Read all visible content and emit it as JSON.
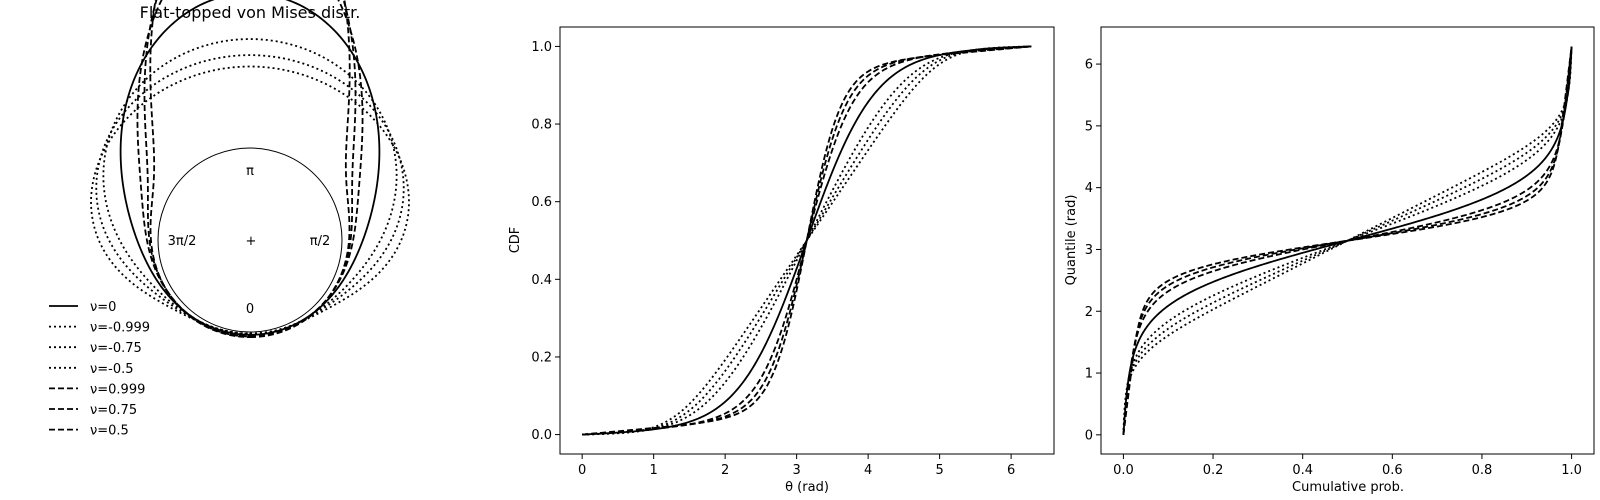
{
  "chart_data": [
    {
      "type": "polar-line",
      "title": "Flat-topped von Mises distr.",
      "angle_labels": {
        "top": "π",
        "right": "π/2",
        "left": "3π/2",
        "bottom": "0",
        "center": "+"
      },
      "legend_placement": "lower-left",
      "series": [
        {
          "name": "ν=0",
          "nu": 0,
          "linestyle": "solid"
        },
        {
          "name": "ν=-0.999",
          "nu": -0.999,
          "linestyle": "dotted"
        },
        {
          "name": "ν=-0.75",
          "nu": -0.75,
          "linestyle": "dotted"
        },
        {
          "name": "ν=-0.5",
          "nu": -0.5,
          "linestyle": "dotted"
        },
        {
          "name": "ν=0.999",
          "nu": 0.999,
          "linestyle": "dashed"
        },
        {
          "name": "ν=0.75",
          "nu": 0.75,
          "linestyle": "dashed"
        },
        {
          "name": "ν=0.5",
          "nu": 0.5,
          "linestyle": "dashed"
        }
      ]
    },
    {
      "type": "line",
      "xlabel": "θ (rad)",
      "ylabel": "CDF",
      "xlim": [
        -0.31,
        6.6
      ],
      "ylim": [
        -0.05,
        1.05
      ],
      "xticks": [
        0,
        1,
        2,
        3,
        4,
        5,
        6
      ],
      "yticks": [
        0.0,
        0.2,
        0.4,
        0.6,
        0.8,
        1.0
      ],
      "ytick_labels": [
        "0.0",
        "0.2",
        "0.4",
        "0.6",
        "0.8",
        "1.0"
      ],
      "x_range": [
        0,
        6.283
      ],
      "grid": false,
      "series": [
        {
          "name": "ν=0",
          "nu": 0,
          "linestyle": "solid"
        },
        {
          "name": "ν=-0.999",
          "nu": -0.999,
          "linestyle": "dotted"
        },
        {
          "name": "ν=-0.75",
          "nu": -0.75,
          "linestyle": "dotted"
        },
        {
          "name": "ν=-0.5",
          "nu": -0.5,
          "linestyle": "dotted"
        },
        {
          "name": "ν=0.999",
          "nu": 0.999,
          "linestyle": "dashed"
        },
        {
          "name": "ν=0.75",
          "nu": 0.75,
          "linestyle": "dashed"
        },
        {
          "name": "ν=0.5",
          "nu": 0.5,
          "linestyle": "dashed"
        }
      ]
    },
    {
      "type": "line",
      "xlabel": "Cumulative prob.",
      "ylabel": "Quantile (rad)",
      "xlim": [
        -0.05,
        1.05
      ],
      "ylim": [
        -0.31,
        6.6
      ],
      "xticks": [
        0.0,
        0.2,
        0.4,
        0.6,
        0.8,
        1.0
      ],
      "xtick_labels": [
        "0.0",
        "0.2",
        "0.4",
        "0.6",
        "0.8",
        "1.0"
      ],
      "yticks": [
        0,
        1,
        2,
        3,
        4,
        5,
        6
      ],
      "y_range": [
        0,
        6.283
      ],
      "grid": false,
      "series": [
        {
          "name": "ν=0",
          "nu": 0,
          "linestyle": "solid"
        },
        {
          "name": "ν=-0.999",
          "nu": -0.999,
          "linestyle": "dotted"
        },
        {
          "name": "ν=-0.75",
          "nu": -0.75,
          "linestyle": "dotted"
        },
        {
          "name": "ν=-0.5",
          "nu": -0.5,
          "linestyle": "dotted"
        },
        {
          "name": "ν=0.999",
          "nu": 0.999,
          "linestyle": "dashed"
        },
        {
          "name": "ν=0.75",
          "nu": 0.75,
          "linestyle": "dashed"
        },
        {
          "name": "ν=0.5",
          "nu": 0.5,
          "linestyle": "dashed"
        }
      ]
    }
  ]
}
